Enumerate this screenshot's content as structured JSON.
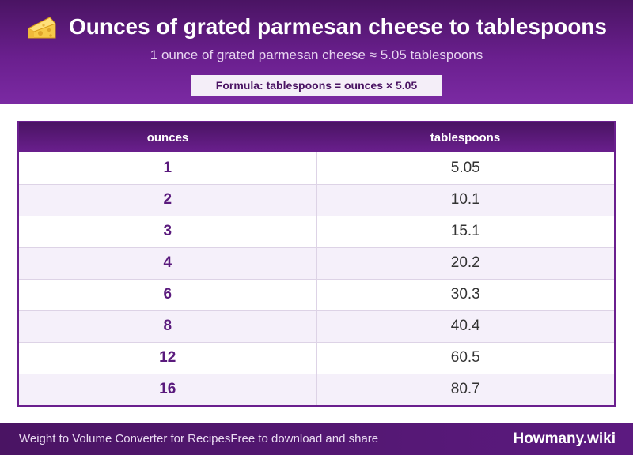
{
  "header": {
    "title": "Ounces of grated parmesan cheese to tablespoons",
    "icon": "cheese-icon",
    "subtitle": "1 ounce of grated parmesan cheese ≈ 5.05 tablespoons",
    "formula": "Formula: tablespoons = ounces × 5.05"
  },
  "table": {
    "columns": [
      "ounces",
      "tablespoons"
    ],
    "rows": [
      {
        "ounces": "1",
        "tablespoons": "5.05"
      },
      {
        "ounces": "2",
        "tablespoons": "10.1"
      },
      {
        "ounces": "3",
        "tablespoons": "15.1"
      },
      {
        "ounces": "4",
        "tablespoons": "20.2"
      },
      {
        "ounces": "6",
        "tablespoons": "30.3"
      },
      {
        "ounces": "8",
        "tablespoons": "40.4"
      },
      {
        "ounces": "12",
        "tablespoons": "60.5"
      },
      {
        "ounces": "16",
        "tablespoons": "80.7"
      }
    ]
  },
  "footer": {
    "left_text_1": "Weight to Volume Converter for Recipes",
    "left_text_2": "Free to download and share",
    "brand": "Howmany.wiki"
  },
  "colors": {
    "brand_purple": "#6a1f8e",
    "dark_purple": "#4a1463",
    "row_alt": "#f5f0fa"
  }
}
